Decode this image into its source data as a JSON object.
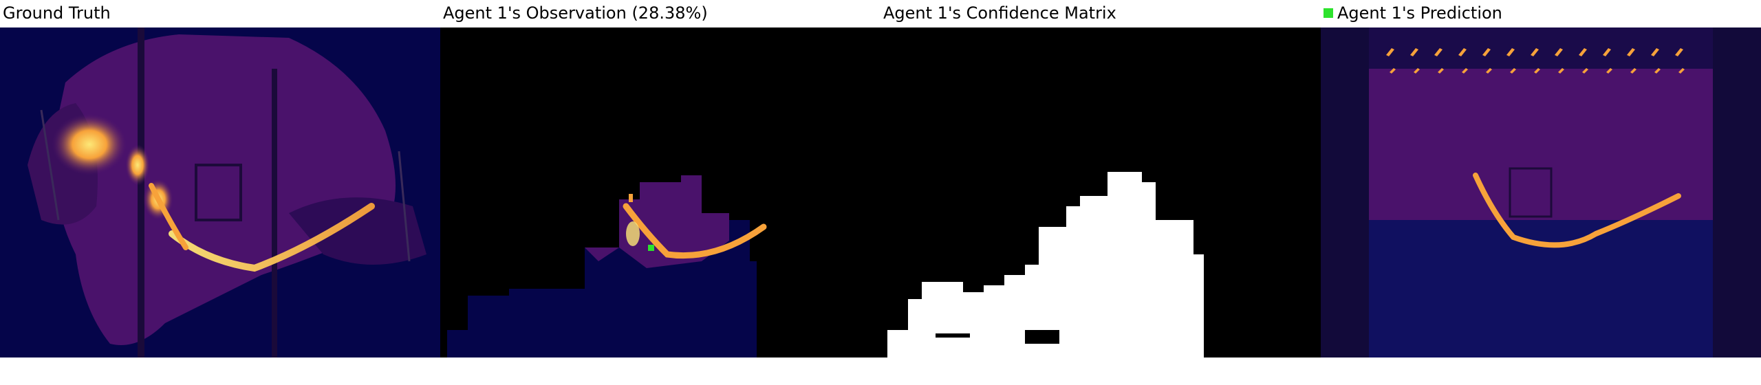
{
  "panels": [
    {
      "title": "Ground Truth"
    },
    {
      "title": "Agent 1's Observation (28.38%)"
    },
    {
      "title": "Agent 1's Confidence Matrix"
    },
    {
      "title": "Agent 1's Prediction"
    }
  ],
  "legend": {
    "color": "#2de22d"
  },
  "colors": {
    "background_dark": "#05054a",
    "region_purple": "#4a126b",
    "fire_orange": "#f7a23a",
    "fire_yellow": "#fde877",
    "mask_black": "#000000",
    "mask_white": "#ffffff"
  }
}
